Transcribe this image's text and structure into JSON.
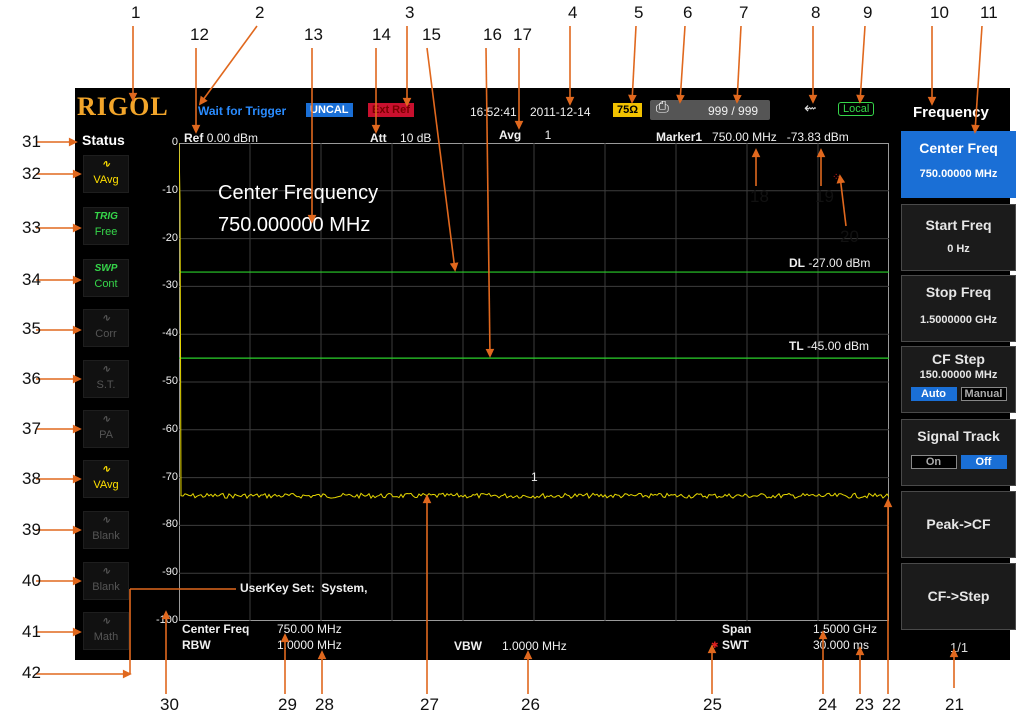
{
  "callouts": [
    "1",
    "2",
    "3",
    "4",
    "5",
    "6",
    "7",
    "8",
    "9",
    "10",
    "11",
    "12",
    "13",
    "14",
    "15",
    "16",
    "17",
    "18",
    "19",
    "20",
    "21",
    "22",
    "23",
    "24",
    "25",
    "26",
    "27",
    "28",
    "29",
    "30",
    "31",
    "32",
    "33",
    "34",
    "35",
    "36",
    "37",
    "38",
    "39",
    "40",
    "41",
    "42"
  ],
  "header": {
    "logo": "RIGOL",
    "trigger_status": "Wait for Trigger",
    "uncal": "UNCAL",
    "ext_ref": "Ext Ref",
    "time": "16:52:41",
    "date": "2011-12-14",
    "impedance": "75Ω",
    "print_count": "999 / 999",
    "local": "Local"
  },
  "status": {
    "title": "Status",
    "icons": [
      {
        "name": "trace-vavg-icon",
        "t1": "",
        "t2": "VAvg",
        "color": "#ffe000"
      },
      {
        "name": "trigger-icon",
        "t1": "TRIG",
        "t2": "Free",
        "color": "#36d64a"
      },
      {
        "name": "sweep-icon",
        "t1": "SWP",
        "t2": "Cont",
        "color": "#36d64a"
      },
      {
        "name": "correction-icon",
        "t1": "",
        "t2": "Corr",
        "color": "#555555"
      },
      {
        "name": "signal-track-icon",
        "t1": "",
        "t2": "S.T.",
        "color": "#555555"
      },
      {
        "name": "preamp-icon",
        "t1": "",
        "t2": "PA",
        "color": "#555555"
      },
      {
        "name": "trace-vavg-2-icon",
        "t1": "",
        "t2": "VAvg",
        "color": "#ffe000"
      },
      {
        "name": "trace-blank-icon",
        "t1": "",
        "t2": "Blank",
        "color": "#555555"
      },
      {
        "name": "trace-blank-2-icon",
        "t1": "",
        "t2": "Blank",
        "color": "#555555"
      },
      {
        "name": "math-icon",
        "t1": "",
        "t2": "Math",
        "color": "#555555"
      }
    ]
  },
  "display": {
    "ref_label": "Ref",
    "ref_value": "0.00 dBm",
    "att_label": "Att",
    "att_value": "10 dB",
    "avg_label": "Avg",
    "avg_value": "1",
    "marker_label": "Marker1",
    "marker_freq": "750.00 MHz",
    "marker_amp": "-73.83 dBm",
    "y_ticks": [
      "0",
      "-10",
      "-20",
      "-30",
      "-40",
      "-50",
      "-60",
      "-70",
      "-80",
      "-90",
      "-100"
    ],
    "center_title": "Center Frequency",
    "center_value": "750.000000 MHz",
    "dl_label": "DL",
    "dl_value": "-27.00 dBm",
    "tl_label": "TL",
    "tl_value": "-45.00 dBm",
    "marker_number": "1",
    "userkey_label": "UserKey Set:",
    "userkey_value": "System,",
    "center_freq_label": "Center Freq",
    "center_freq_value": "750.00 MHz",
    "rbw_label": "RBW",
    "rbw_value": "1.0000 MHz",
    "vbw_label": "VBW",
    "vbw_value": "1.0000 MHz",
    "span_label": "Span",
    "span_value": "1.5000 GHz",
    "swt_label": "SWT",
    "swt_value": "30.000 ms",
    "noise_level_dbm": -73.8,
    "display_line_dbm": -27,
    "threshold_line_dbm": -45
  },
  "menu": {
    "title": "Frequency",
    "center_freq_label": "Center Freq",
    "center_freq_value": "750.00000 MHz",
    "start_freq_label": "Start Freq",
    "start_freq_value": "0 Hz",
    "stop_freq_label": "Stop Freq",
    "stop_freq_value": "1.5000000 GHz",
    "cf_step_label": "CF Step",
    "cf_step_value": "150.00000 MHz",
    "auto_label": "Auto",
    "manual_label": "Manual",
    "signal_track_label": "Signal Track",
    "on_label": "On",
    "off_label": "Off",
    "peak_cf_label": "Peak->CF",
    "cf_step_btn_label": "CF->Step",
    "page": "1/1"
  }
}
